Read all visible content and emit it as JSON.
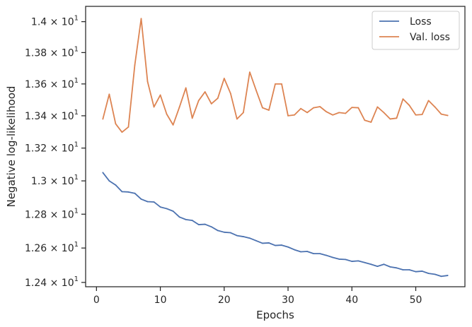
{
  "chart_data": {
    "type": "line",
    "xlabel": "Epochs",
    "ylabel": "Negative log-likelihood",
    "xlim": [
      -1.7,
      57.7
    ],
    "ylim": [
      12.375,
      14.1
    ],
    "yscale": "log",
    "xticks": [
      0,
      10,
      20,
      30,
      40,
      50
    ],
    "yticks": [
      {
        "value": 12.4,
        "mantissa": "1.24",
        "label": "1.24 × 10^1"
      },
      {
        "value": 12.6,
        "mantissa": "1.26",
        "label": "1.26 × 10^1"
      },
      {
        "value": 12.8,
        "mantissa": "1.28",
        "label": "1.28 × 10^1"
      },
      {
        "value": 13.0,
        "mantissa": "1.3",
        "label": "1.3 × 10^1"
      },
      {
        "value": 13.2,
        "mantissa": "1.32",
        "label": "1.32 × 10^1"
      },
      {
        "value": 13.4,
        "mantissa": "1.34",
        "label": "1.34 × 10^1"
      },
      {
        "value": 13.6,
        "mantissa": "1.36",
        "label": "1.36 × 10^1"
      },
      {
        "value": 13.8,
        "mantissa": "1.38",
        "label": "1.38 × 10^1"
      },
      {
        "value": 14.0,
        "mantissa": "1.4",
        "label": "1.4 × 10^1"
      }
    ],
    "tick_exponent": "1",
    "tick_base": "10",
    "grid": false,
    "legend_position": "top-right",
    "x": [
      1,
      2,
      3,
      4,
      5,
      6,
      7,
      8,
      9,
      10,
      11,
      12,
      13,
      14,
      15,
      16,
      17,
      18,
      19,
      20,
      21,
      22,
      23,
      24,
      25,
      26,
      27,
      28,
      29,
      30,
      31,
      32,
      33,
      34,
      35,
      36,
      37,
      38,
      39,
      40,
      41,
      42,
      43,
      44,
      45,
      46,
      47,
      48,
      49,
      50,
      51,
      52,
      53,
      54,
      55
    ],
    "series": [
      {
        "name": "Loss",
        "color": "#4c72b0",
        "values": [
          13.05,
          13.0,
          12.975,
          12.935,
          12.933,
          12.925,
          12.89,
          12.875,
          12.873,
          12.843,
          12.833,
          12.818,
          12.783,
          12.768,
          12.763,
          12.738,
          12.74,
          12.725,
          12.703,
          12.693,
          12.69,
          12.673,
          12.667,
          12.658,
          12.643,
          12.628,
          12.63,
          12.615,
          12.617,
          12.606,
          12.59,
          12.578,
          12.58,
          12.567,
          12.567,
          12.557,
          12.545,
          12.535,
          12.533,
          12.522,
          12.525,
          12.515,
          12.505,
          12.493,
          12.505,
          12.49,
          12.484,
          12.473,
          12.473,
          12.462,
          12.465,
          12.452,
          12.447,
          12.435,
          12.44
        ]
      },
      {
        "name": "Val. loss",
        "color": "#dd8452",
        "values": [
          13.38,
          13.535,
          13.35,
          13.298,
          13.33,
          13.72,
          14.02,
          13.615,
          13.455,
          13.53,
          13.41,
          13.343,
          13.455,
          13.575,
          13.385,
          13.495,
          13.55,
          13.475,
          13.51,
          13.635,
          13.54,
          13.38,
          13.42,
          13.675,
          13.56,
          13.45,
          13.435,
          13.6,
          13.6,
          13.4,
          13.405,
          13.445,
          13.42,
          13.45,
          13.457,
          13.425,
          13.405,
          13.42,
          13.415,
          13.452,
          13.45,
          13.372,
          13.36,
          13.455,
          13.42,
          13.38,
          13.385,
          13.505,
          13.465,
          13.405,
          13.408,
          13.495,
          13.455,
          13.41,
          13.402
        ]
      }
    ]
  }
}
